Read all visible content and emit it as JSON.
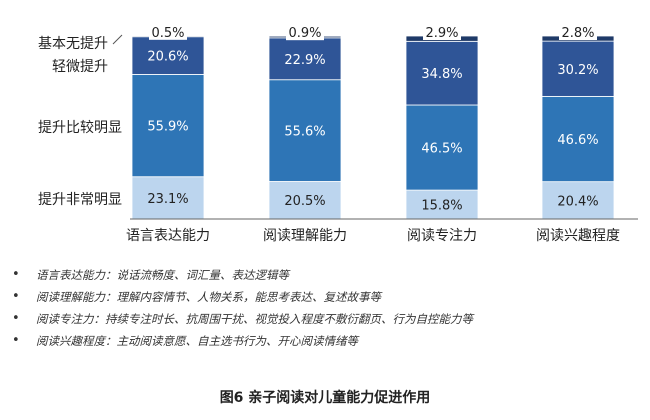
{
  "chart_data": {
    "type": "bar",
    "stacked": true,
    "categories": [
      "语言表达能力",
      "阅读理解能力",
      "阅读专注力",
      "阅读兴趣程度"
    ],
    "series": [
      {
        "name": "提升非常明显",
        "values": [
          23.1,
          20.5,
          15.8,
          20.4
        ],
        "labels": [
          "23.1%",
          "20.5%",
          "15.8%",
          "20.4%"
        ],
        "color": "#bcd5ee",
        "text_color": "#222222"
      },
      {
        "name": "提升比较明显",
        "values": [
          55.9,
          55.6,
          46.5,
          46.6
        ],
        "labels": [
          "55.9%",
          "55.6%",
          "46.5%",
          "46.6%"
        ],
        "color": "#2e75b6",
        "text_color": "#ffffff"
      },
      {
        "name": "轻微提升",
        "values": [
          20.6,
          22.9,
          34.8,
          30.2
        ],
        "labels": [
          "20.6%",
          "22.9%",
          "34.8%",
          "30.2%"
        ],
        "color": "#2f5597",
        "text_color": "#ffffff"
      },
      {
        "name": "基本无提升",
        "values": [
          0.5,
          0.9,
          2.9,
          2.8
        ],
        "labels": [
          "0.5%",
          "0.9%",
          "2.9%",
          "2.8%"
        ],
        "color": "#1f3a68",
        "text_color": "#222222"
      }
    ],
    "ylim": [
      0,
      100
    ],
    "legend_placement": "left",
    "grid": false
  },
  "legend_labels": {
    "s0": "提升非常明显",
    "s1": "提升比较明显",
    "s2": "轻微提升",
    "s3": "基本无提升"
  },
  "notes": [
    {
      "bullet": "•",
      "text": "语言表达能力：说话流畅度、词汇量、表达逻辑等"
    },
    {
      "bullet": "•",
      "text": "阅读理解能力：理解内容情节、人物关系，能思考表达、复述故事等"
    },
    {
      "bullet": "•",
      "text": "阅读专注力：持续专注时长、抗周围干扰、视觉投入程度不敷衍翻页、行为自控能力等"
    },
    {
      "bullet": "•",
      "text": "阅读兴趣程度：主动阅读意愿、自主选书行为、开心阅读情绪等"
    }
  ],
  "caption": "图6 亲子阅读对儿童能力促进作用"
}
